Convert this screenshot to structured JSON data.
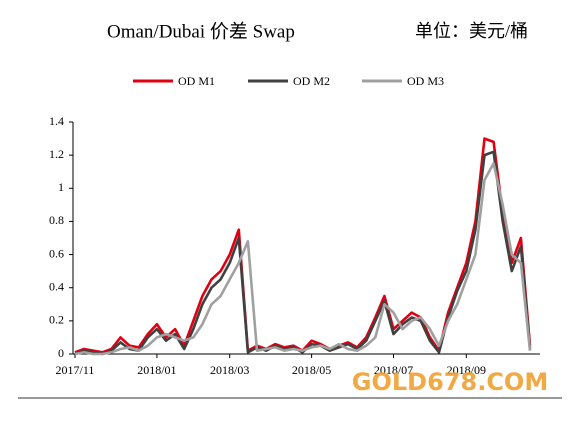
{
  "chart_data": {
    "type": "line",
    "title": "Oman/Dubai 价差 Swap",
    "unit": "单位：美元/桶",
    "watermark": "GOLD678.COM",
    "categories": [
      "2017/11",
      null,
      null,
      null,
      null,
      null,
      null,
      null,
      null,
      "2018/01",
      null,
      null,
      null,
      null,
      null,
      null,
      null,
      "2018/03",
      null,
      null,
      null,
      null,
      null,
      null,
      null,
      null,
      "2018/05",
      null,
      null,
      null,
      null,
      null,
      null,
      null,
      null,
      "2018/07",
      null,
      null,
      null,
      null,
      null,
      null,
      null,
      "2018/09",
      null,
      null,
      null,
      null,
      null,
      null,
      null
    ],
    "series": [
      {
        "name": "OD M1",
        "color": "#e00012",
        "values": [
          0.01,
          0.03,
          0.02,
          0.01,
          0.03,
          0.1,
          0.05,
          0.04,
          0.12,
          0.18,
          0.1,
          0.15,
          0.05,
          0.2,
          0.35,
          0.45,
          0.5,
          0.6,
          0.75,
          0.02,
          0.05,
          0.03,
          0.06,
          0.04,
          0.05,
          0.02,
          0.08,
          0.06,
          0.03,
          0.05,
          0.07,
          0.04,
          0.1,
          0.22,
          0.35,
          0.15,
          0.2,
          0.25,
          0.22,
          0.1,
          0.02,
          0.25,
          0.4,
          0.55,
          0.8,
          1.3,
          1.28,
          0.85,
          0.55,
          0.7,
          0.05
        ]
      },
      {
        "name": "OD M2",
        "color": "#404040",
        "values": [
          0,
          0.02,
          0.01,
          0,
          0.02,
          0.07,
          0.03,
          0.02,
          0.1,
          0.15,
          0.08,
          0.12,
          0.03,
          0.15,
          0.3,
          0.4,
          0.45,
          0.55,
          0.7,
          0.01,
          0.04,
          0.02,
          0.05,
          0.03,
          0.04,
          0.01,
          0.06,
          0.05,
          0.02,
          0.04,
          0.06,
          0.03,
          0.08,
          0.2,
          0.32,
          0.12,
          0.18,
          0.22,
          0.2,
          0.08,
          0.01,
          0.22,
          0.38,
          0.5,
          0.75,
          1.2,
          1.22,
          0.8,
          0.5,
          0.65,
          0.03
        ]
      },
      {
        "name": "OD M3",
        "color": "#a0a0a0",
        "values": [
          0,
          0.01,
          0,
          0,
          0.01,
          0.03,
          0.04,
          0.02,
          0.05,
          0.1,
          0.12,
          0.1,
          0.08,
          0.1,
          0.18,
          0.3,
          0.35,
          0.45,
          0.55,
          0.68,
          0.02,
          0.03,
          0.04,
          0.02,
          0.03,
          0.02,
          0.04,
          0.05,
          0.03,
          0.06,
          0.03,
          0.02,
          0.05,
          0.1,
          0.3,
          0.25,
          0.15,
          0.2,
          0.22,
          0.15,
          0.05,
          0.2,
          0.3,
          0.45,
          0.6,
          1.05,
          1.15,
          0.9,
          0.6,
          0.55,
          0.02
        ]
      }
    ],
    "ylim": [
      0,
      1.4
    ],
    "yticks": [
      0,
      0.2,
      0.4,
      0.6,
      0.8,
      1,
      1.2,
      1.4
    ],
    "legend": "top",
    "grid": false
  }
}
